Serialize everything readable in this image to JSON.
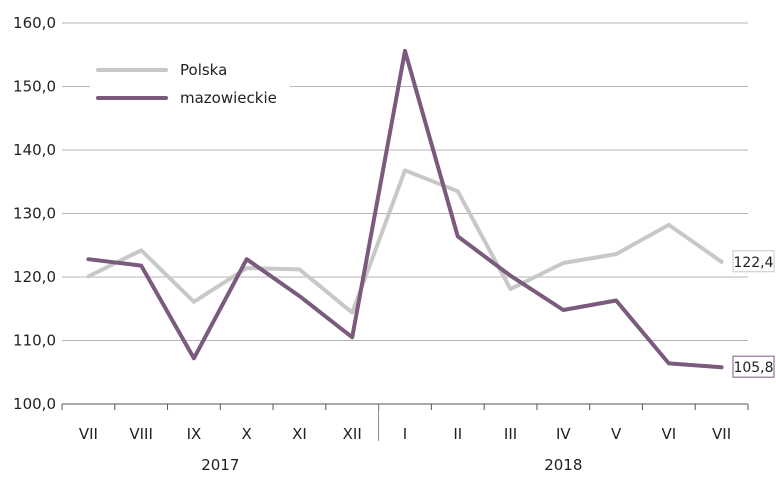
{
  "chart_data": {
    "type": "line",
    "caption_fragment": "",
    "categories": [
      "VII",
      "VIII",
      "IX",
      "X",
      "XI",
      "XII",
      "I",
      "II",
      "III",
      "IV",
      "V",
      "VI",
      "VII"
    ],
    "groups": [
      {
        "label": "2017",
        "from": 0,
        "to": 5
      },
      {
        "label": "2018",
        "from": 6,
        "to": 12
      }
    ],
    "ylim": [
      100,
      160
    ],
    "yticks": [
      "100,0",
      "110,0",
      "120,0",
      "130,0",
      "140,0",
      "150,0",
      "160,0"
    ],
    "ytick_values": [
      100,
      110,
      120,
      130,
      140,
      150,
      160
    ],
    "series": [
      {
        "name": "Polska",
        "color": "#c8c8c8",
        "values": [
          120.1,
          124.2,
          116.1,
          121.4,
          121.2,
          114.4,
          136.8,
          133.5,
          118.1,
          122.2,
          123.6,
          128.2,
          122.4
        ],
        "end_label": "122,4"
      },
      {
        "name": "mazowieckie",
        "color": "#7a5a7d",
        "values": [
          122.8,
          121.8,
          107.2,
          122.8,
          117.0,
          110.5,
          155.6,
          126.4,
          120.2,
          114.8,
          116.3,
          106.4,
          105.8
        ],
        "end_label": "105,8"
      }
    ],
    "grid": true,
    "legend_position": "top-left"
  }
}
